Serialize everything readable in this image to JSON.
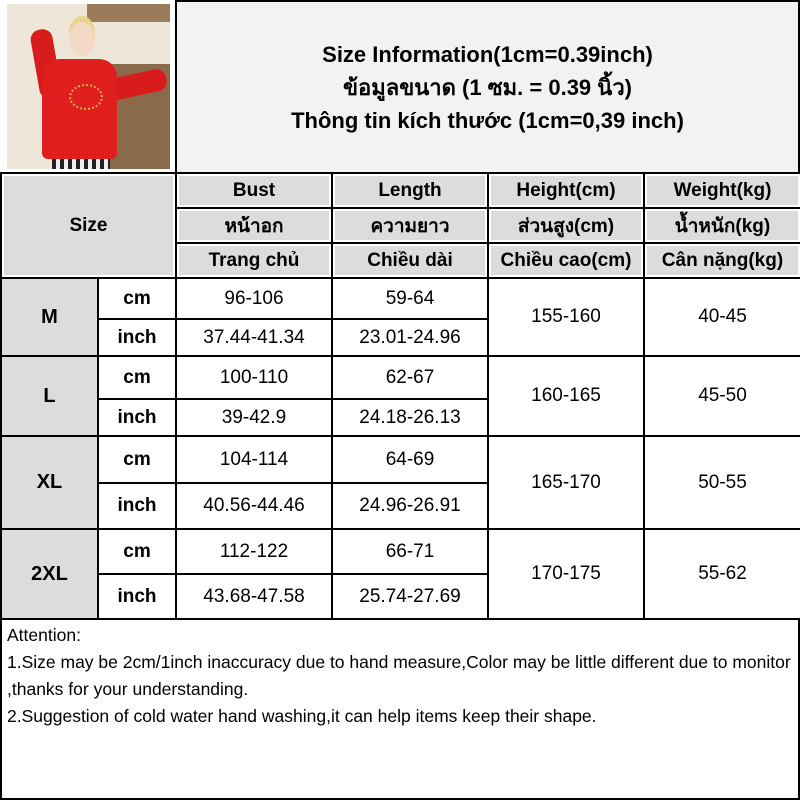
{
  "title_lines": [
    "Size Information(1cm=0.39inch)",
    "ข้อมูลขนาด (1 ซม. = 0.39 นิ้ว)",
    "Thông tin kích thước (1cm=0,39 inch)"
  ],
  "header": {
    "size": "Size",
    "columns": [
      {
        "en": "Bust",
        "th": "หน้าอก",
        "vi": "Trang chủ"
      },
      {
        "en": "Length",
        "th": "ความยาว",
        "vi": "Chiều dài"
      },
      {
        "en": "Height(cm)",
        "th": "ส่วนสูง(cm)",
        "vi": "Chiều cao(cm)"
      },
      {
        "en": "Weight(kg)",
        "th": "น้ำหนัก(kg)",
        "vi": "Cân nặng(kg)"
      }
    ]
  },
  "units": {
    "cm": "cm",
    "inch": "inch"
  },
  "rows": [
    {
      "size": "M",
      "bust_cm": "96-106",
      "bust_inch": "37.44-41.34",
      "length_cm": "59-64",
      "length_inch": "23.01-24.96",
      "height": "155-160",
      "weight": "40-45"
    },
    {
      "size": "L",
      "bust_cm": "100-110",
      "bust_inch": "39-42.9",
      "length_cm": "62-67",
      "length_inch": "24.18-26.13",
      "height": "160-165",
      "weight": "45-50"
    },
    {
      "size": "XL",
      "bust_cm": "104-114",
      "bust_inch": "40.56-44.46",
      "length_cm": "64-69",
      "length_inch": "24.96-26.91",
      "height": "165-170",
      "weight": "50-55"
    },
    {
      "size": "2XL",
      "bust_cm": "112-122",
      "bust_inch": "43.68-47.58",
      "length_cm": "66-71",
      "length_inch": "25.74-27.69",
      "height": "170-175",
      "weight": "55-62"
    }
  ],
  "attention": {
    "heading": "Attention:",
    "notes": [
      "1.Size may be 2cm/1inch inaccuracy due to hand measure,Color may be little different due to monitor ,thanks for your understanding.",
      "2.Suggestion of cold water hand washing,it can help items keep their shape."
    ]
  }
}
